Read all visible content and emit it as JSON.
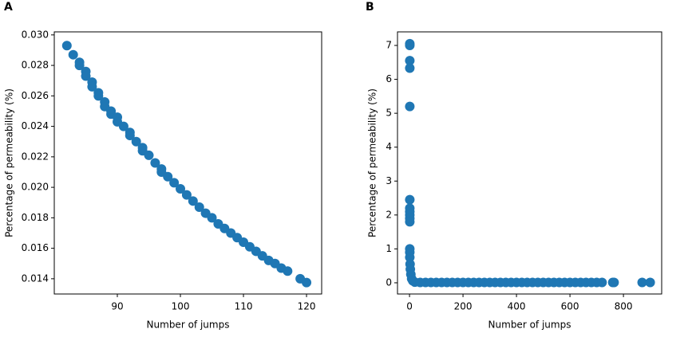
{
  "chart_data": [
    {
      "type": "scatter",
      "panel": "A",
      "xlabel": "Number of jumps",
      "ylabel": "Percentage of permeability (%)",
      "color": "#1f77b4",
      "x": [
        82,
        83,
        84,
        84,
        85,
        85,
        86,
        86,
        87,
        87,
        88,
        88,
        89,
        89,
        90,
        90,
        91,
        92,
        92,
        93,
        94,
        94,
        95,
        96,
        97,
        97,
        98,
        99,
        100,
        101,
        102,
        103,
        104,
        105,
        106,
        107,
        108,
        109,
        110,
        111,
        112,
        113,
        114,
        115,
        116,
        117,
        119,
        120
      ],
      "values": [
        0.0293,
        0.0287,
        0.0282,
        0.028,
        0.0276,
        0.0273,
        0.0269,
        0.0266,
        0.0262,
        0.026,
        0.0256,
        0.0253,
        0.025,
        0.0248,
        0.0246,
        0.0243,
        0.024,
        0.0236,
        0.0234,
        0.023,
        0.0226,
        0.0224,
        0.0221,
        0.0216,
        0.0212,
        0.021,
        0.0207,
        0.0203,
        0.0199,
        0.0195,
        0.0191,
        0.0187,
        0.0183,
        0.018,
        0.0176,
        0.0173,
        0.017,
        0.0167,
        0.0164,
        0.0161,
        0.0158,
        0.0155,
        0.0152,
        0.015,
        0.0147,
        0.0145,
        0.014,
        0.01375
      ],
      "xlim": [
        80,
        122.4
      ],
      "xticks": [
        90,
        100,
        110,
        120
      ],
      "ylim": [
        0.013,
        0.0302
      ],
      "yticks": [
        {
          "value": 0.014,
          "label": "0.014"
        },
        {
          "value": 0.016,
          "label": "0.016"
        },
        {
          "value": 0.018,
          "label": "0.018"
        },
        {
          "value": 0.02,
          "label": "0.020"
        },
        {
          "value": 0.022,
          "label": "0.022"
        },
        {
          "value": 0.024,
          "label": "0.024"
        },
        {
          "value": 0.026,
          "label": "0.026"
        },
        {
          "value": 0.028,
          "label": "0.028"
        },
        {
          "value": 0.03,
          "label": "0.030"
        }
      ]
    },
    {
      "type": "scatter",
      "panel": "B",
      "xlabel": "Number of jumps",
      "ylabel": "Percentage of permeability (%)",
      "color": "#1f77b4",
      "x": [
        1,
        1,
        1,
        1,
        1,
        1,
        1,
        1,
        1,
        1,
        1,
        1,
        1,
        1,
        2,
        3,
        5,
        8,
        12,
        20,
        40,
        60,
        80,
        100,
        120,
        140,
        160,
        180,
        200,
        220,
        240,
        260,
        280,
        300,
        320,
        340,
        360,
        380,
        400,
        420,
        440,
        460,
        480,
        500,
        520,
        540,
        560,
        580,
        600,
        620,
        640,
        660,
        680,
        700,
        720,
        760,
        765,
        870,
        900
      ],
      "values": [
        7.05,
        7.0,
        6.55,
        6.33,
        5.2,
        2.45,
        2.2,
        2.1,
        2.0,
        1.9,
        1.8,
        1.0,
        0.9,
        0.75,
        0.55,
        0.4,
        0.25,
        0.12,
        0.06,
        0.02,
        0.01,
        0.01,
        0.01,
        0.01,
        0.01,
        0.01,
        0.01,
        0.01,
        0.01,
        0.01,
        0.01,
        0.01,
        0.01,
        0.01,
        0.01,
        0.01,
        0.01,
        0.01,
        0.01,
        0.01,
        0.01,
        0.01,
        0.01,
        0.01,
        0.01,
        0.01,
        0.01,
        0.01,
        0.01,
        0.01,
        0.01,
        0.01,
        0.01,
        0.01,
        0.01,
        0.01,
        0.01,
        0.01,
        0.01
      ],
      "xlim": [
        -45,
        943
      ],
      "xticks": [
        0,
        200,
        400,
        600,
        800
      ],
      "ylim": [
        -0.33,
        7.4
      ],
      "yticks": [
        0,
        1,
        2,
        3,
        4,
        5,
        6,
        7
      ]
    }
  ]
}
